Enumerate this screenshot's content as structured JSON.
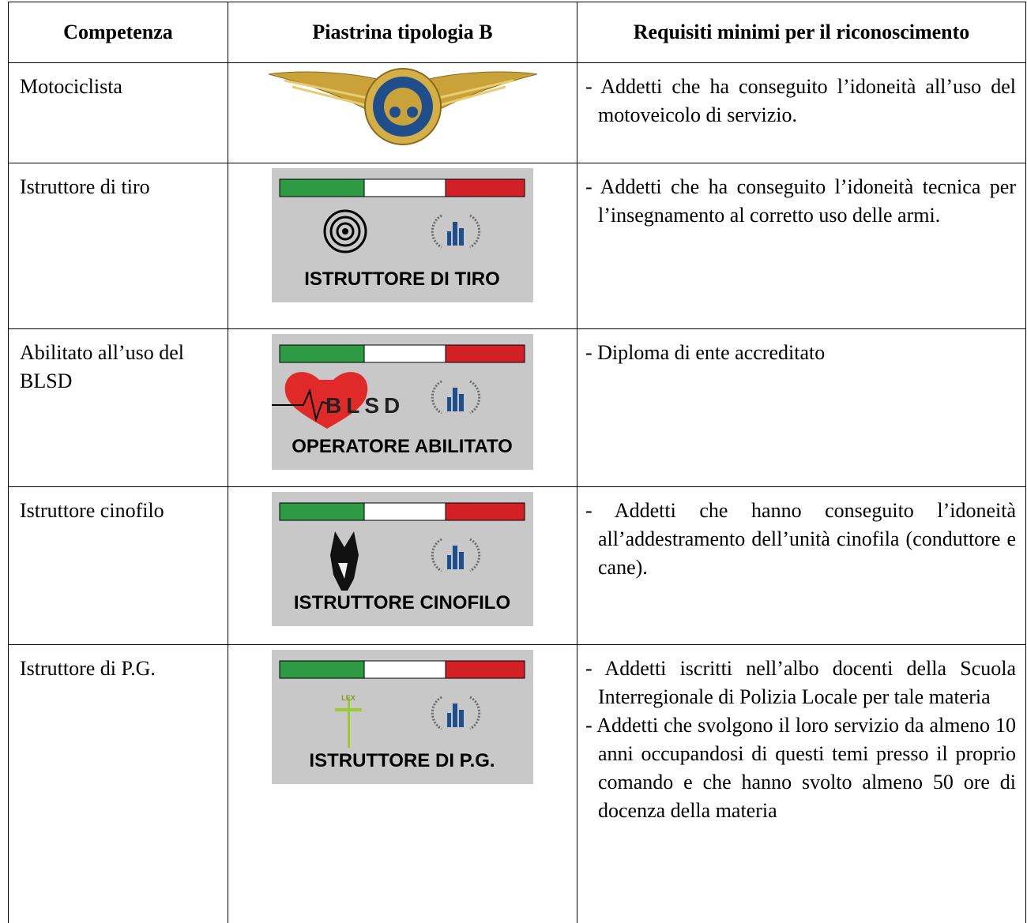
{
  "table": {
    "header": [
      "Competenza",
      "Piastrina tipologia B",
      "Requisiti minimi per il riconoscimento"
    ],
    "rows": [
      {
        "competence": "Motociclista",
        "badge": {},
        "requirements": [
          "- Addetti che ha conseguito l’idoneità all’uso del motoveicolo di servizio."
        ]
      },
      {
        "competence": "Istruttore di tiro",
        "badge": {
          "text": "ISTRUTTORE DI TIRO"
        },
        "requirements": [
          "- Addetti che ha conseguito l’idoneità tecnica per l’insegnamento al corretto uso delle armi."
        ]
      },
      {
        "competence": "Abilitato all’uso del BLSD",
        "badge": {
          "logo": "BLSD",
          "text": "OPERATORE ABILITATO"
        },
        "requirements": [
          "- Diploma di ente accreditato"
        ]
      },
      {
        "competence": "Istruttore cinofilo",
        "badge": {
          "text": "ISTRUTTORE CINOFILO"
        },
        "requirements": [
          "- Addetti che hanno conseguito l’idoneità all’addestramento dell’unità cinofila (conduttore e cane)."
        ]
      },
      {
        "competence": "Istruttore di P.G.",
        "badge": {
          "logo": "LEX",
          "text": "ISTRUTTORE DI P.G."
        },
        "requirements": [
          "- Addetti iscritti nell’albo docenti della Scuola Interregionale di Polizia Locale per tale materia",
          "- Addetti che svolgono il loro servizio da almeno 10 anni occupandosi di questi temi presso il proprio comando e che hanno svolto almeno 50 ore di docenza della materia"
        ]
      }
    ]
  }
}
